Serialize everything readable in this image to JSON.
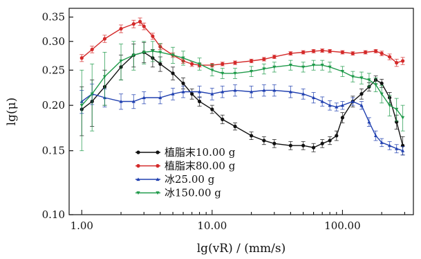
{
  "chart_data": {
    "type": "line",
    "xlabel": "lg(vR) / (mm/s)",
    "ylabel": "lg(μ)",
    "x_scale": "log",
    "y_scale": "log",
    "xlim": [
      0.8,
      350
    ],
    "ylim": [
      0.1,
      0.37
    ],
    "x_ticks": [
      1,
      10,
      100
    ],
    "x_tick_labels": [
      "1.00",
      "10.00",
      "100.00"
    ],
    "y_ticks": [
      0.1,
      0.15,
      0.2,
      0.25,
      0.3,
      0.35
    ],
    "y_tick_labels": [
      "0.10",
      "0.15",
      "0.20",
      "0.25",
      "0.30",
      "0.35"
    ],
    "grid": false,
    "legend_position": "lower-center",
    "error_bars": true,
    "series": [
      {
        "name": "植脂末10.00 g",
        "color": "#111111",
        "marker": "circle",
        "x": [
          1.0,
          1.2,
          1.5,
          2.0,
          2.5,
          3.0,
          3.5,
          4.0,
          5.0,
          6.0,
          7.0,
          8.0,
          10.0,
          12.0,
          15.0,
          20.0,
          25.0,
          30.0,
          40.0,
          50.0,
          60.0,
          70.0,
          80.0,
          90.0,
          100.0,
          120.0,
          140.0,
          160.0,
          180.0,
          200.0,
          230.0,
          260.0,
          290.0
        ],
        "y": [
          0.195,
          0.205,
          0.225,
          0.255,
          0.275,
          0.28,
          0.27,
          0.26,
          0.245,
          0.23,
          0.215,
          0.205,
          0.195,
          0.183,
          0.175,
          0.165,
          0.16,
          0.157,
          0.155,
          0.155,
          0.153,
          0.157,
          0.16,
          0.165,
          0.185,
          0.205,
          0.215,
          0.225,
          0.235,
          0.23,
          0.21,
          0.18,
          0.155
        ],
        "err": [
          0.03,
          0.03,
          0.025,
          0.02,
          0.02,
          0.018,
          0.015,
          0.012,
          0.01,
          0.008,
          0.007,
          0.006,
          0.005,
          0.005,
          0.004,
          0.004,
          0.004,
          0.004,
          0.004,
          0.004,
          0.004,
          0.004,
          0.004,
          0.005,
          0.006,
          0.007,
          0.007,
          0.006,
          0.006,
          0.006,
          0.007,
          0.008,
          0.009
        ]
      },
      {
        "name": "植脂末80.00 g",
        "color": "#d42a2a",
        "marker": "circle",
        "x": [
          1.0,
          1.2,
          1.5,
          2.0,
          2.5,
          2.8,
          3.0,
          3.5,
          4.0,
          5.0,
          6.0,
          7.0,
          8.0,
          10.0,
          12.0,
          15.0,
          20.0,
          25.0,
          30.0,
          40.0,
          50.0,
          60.0,
          70.0,
          80.0,
          100.0,
          120.0,
          150.0,
          180.0,
          200.0,
          230.0,
          260.0,
          290.0
        ],
        "y": [
          0.27,
          0.285,
          0.305,
          0.325,
          0.335,
          0.34,
          0.33,
          0.31,
          0.29,
          0.275,
          0.265,
          0.26,
          0.258,
          0.258,
          0.26,
          0.262,
          0.265,
          0.268,
          0.272,
          0.278,
          0.28,
          0.282,
          0.283,
          0.282,
          0.28,
          0.278,
          0.28,
          0.282,
          0.278,
          0.272,
          0.262,
          0.265
        ],
        "err": [
          0.006,
          0.006,
          0.007,
          0.008,
          0.008,
          0.008,
          0.007,
          0.006,
          0.005,
          0.004,
          0.004,
          0.004,
          0.003,
          0.003,
          0.003,
          0.003,
          0.003,
          0.003,
          0.003,
          0.003,
          0.003,
          0.003,
          0.003,
          0.003,
          0.003,
          0.003,
          0.003,
          0.003,
          0.004,
          0.005,
          0.006,
          0.006
        ]
      },
      {
        "name": "冰25.00 g",
        "color": "#2040b0",
        "marker": "triangle-up",
        "x": [
          1.0,
          1.2,
          1.5,
          2.0,
          2.5,
          3.0,
          4.0,
          5.0,
          6.0,
          8.0,
          10.0,
          12.0,
          15.0,
          20.0,
          25.0,
          30.0,
          40.0,
          50.0,
          60.0,
          70.0,
          80.0,
          90.0,
          100.0,
          120.0,
          140.0,
          160.0,
          180.0,
          200.0,
          230.0,
          260.0,
          290.0
        ],
        "y": [
          0.205,
          0.215,
          0.21,
          0.205,
          0.205,
          0.21,
          0.21,
          0.215,
          0.218,
          0.218,
          0.215,
          0.218,
          0.22,
          0.218,
          0.22,
          0.22,
          0.218,
          0.215,
          0.21,
          0.205,
          0.2,
          0.198,
          0.2,
          0.205,
          0.2,
          0.18,
          0.165,
          0.158,
          0.155,
          0.152,
          0.15
        ],
        "err": [
          0.015,
          0.014,
          0.012,
          0.01,
          0.009,
          0.008,
          0.008,
          0.008,
          0.008,
          0.008,
          0.008,
          0.008,
          0.008,
          0.008,
          0.008,
          0.008,
          0.008,
          0.007,
          0.007,
          0.006,
          0.006,
          0.005,
          0.005,
          0.005,
          0.005,
          0.005,
          0.005,
          0.004,
          0.004,
          0.004,
          0.004
        ]
      },
      {
        "name": "冰150.00 g",
        "color": "#1f9a4a",
        "marker": "triangle-down",
        "x": [
          1.0,
          1.2,
          1.5,
          2.0,
          2.5,
          3.0,
          3.5,
          4.0,
          5.0,
          6.0,
          8.0,
          10.0,
          12.0,
          15.0,
          20.0,
          25.0,
          30.0,
          40.0,
          50.0,
          60.0,
          70.0,
          80.0,
          100.0,
          120.0,
          140.0,
          160.0,
          180.0,
          200.0,
          230.0,
          260.0,
          290.0
        ],
        "y": [
          0.2,
          0.215,
          0.24,
          0.265,
          0.275,
          0.28,
          0.282,
          0.28,
          0.275,
          0.27,
          0.26,
          0.25,
          0.245,
          0.245,
          0.248,
          0.252,
          0.255,
          0.258,
          0.255,
          0.258,
          0.258,
          0.255,
          0.248,
          0.24,
          0.238,
          0.235,
          0.228,
          0.215,
          0.2,
          0.195,
          0.185
        ],
        "err": [
          0.05,
          0.045,
          0.04,
          0.03,
          0.025,
          0.02,
          0.018,
          0.016,
          0.014,
          0.012,
          0.01,
          0.009,
          0.008,
          0.008,
          0.008,
          0.008,
          0.008,
          0.008,
          0.008,
          0.008,
          0.008,
          0.008,
          0.008,
          0.008,
          0.009,
          0.01,
          0.01,
          0.012,
          0.013,
          0.014,
          0.015
        ]
      }
    ]
  }
}
